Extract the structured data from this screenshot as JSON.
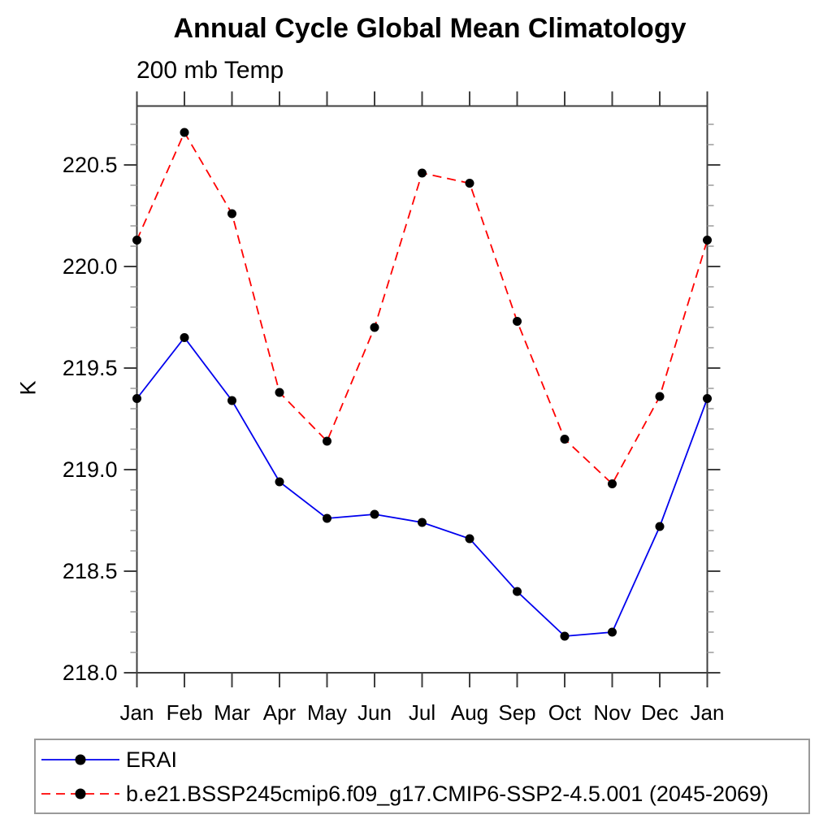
{
  "header": {
    "title": "Annual Cycle Global Mean Climatology",
    "subtitle": "200 mb Temp"
  },
  "chart_data": {
    "type": "line",
    "title": "Annual Cycle Global Mean Climatology",
    "subtitle": "200 mb Temp",
    "ylabel": "K",
    "x_categories": [
      "Jan",
      "Feb",
      "Mar",
      "Apr",
      "May",
      "Jun",
      "Jul",
      "Aug",
      "Sep",
      "Oct",
      "Nov",
      "Dec",
      "Jan"
    ],
    "series": [
      {
        "name": "ERAI",
        "color": "#0000ee",
        "line_style": "solid",
        "marker": "filled-circle",
        "marker_color": "#000000",
        "values": [
          219.35,
          219.65,
          219.34,
          218.94,
          218.76,
          218.78,
          218.74,
          218.66,
          218.4,
          218.18,
          218.2,
          218.72,
          219.35
        ]
      },
      {
        "name": "b.e21.BSSP245cmip6.f09_g17.CMIP6-SSP2-4.5.001 (2045-2069)",
        "color": "#ff0000",
        "line_style": "dashed",
        "marker": "filled-circle",
        "marker_color": "#000000",
        "values": [
          220.13,
          220.66,
          220.26,
          219.38,
          219.14,
          219.7,
          220.46,
          220.41,
          219.73,
          219.15,
          218.93,
          219.36,
          220.13
        ]
      }
    ],
    "ylim": [
      218.0,
      220.79
    ],
    "ytick_major": [
      218.0,
      218.5,
      219.0,
      219.5,
      220.0,
      220.5
    ],
    "ytick_labels": [
      "218.0",
      "218.5",
      "219.0",
      "219.5",
      "220.0",
      "220.5"
    ],
    "ytick_minor_step": 0.1,
    "grid": false,
    "legend_position": "bottom"
  },
  "legend": {
    "items": [
      {
        "label": "ERAI"
      },
      {
        "label": "b.e21.BSSP245cmip6.f09_g17.CMIP6-SSP2-4.5.001 (2045-2069)"
      }
    ]
  }
}
